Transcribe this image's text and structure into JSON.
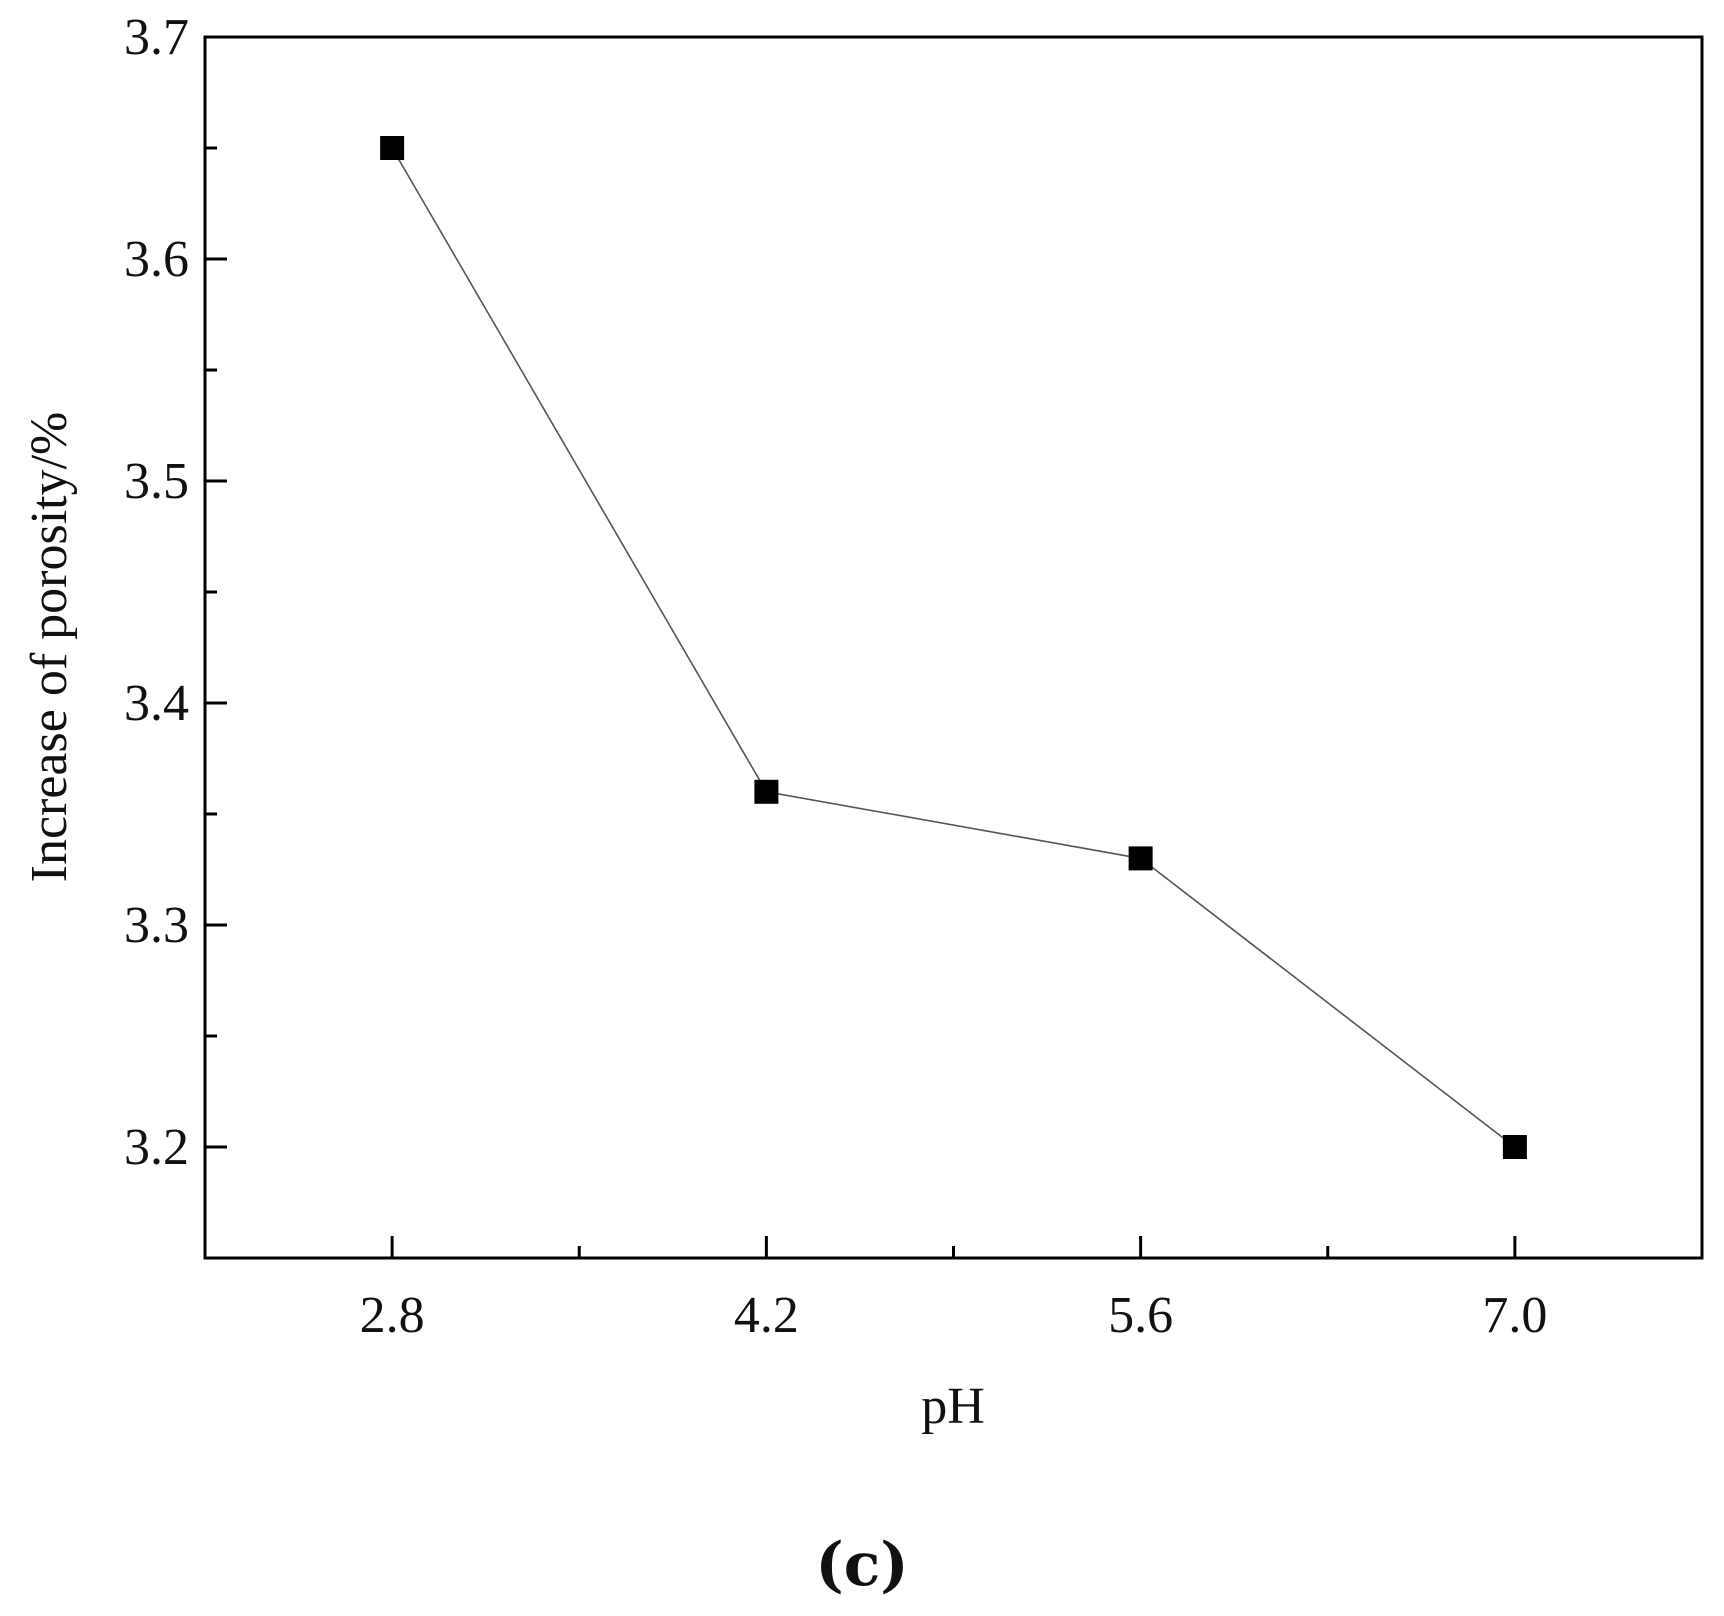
{
  "chart_data": {
    "type": "line",
    "x": [
      2.8,
      4.2,
      5.6,
      7.0
    ],
    "series": [
      {
        "values": [
          3.65,
          3.36,
          3.33,
          3.2
        ]
      }
    ],
    "xlabel": "pH",
    "ylabel": "Increase of porosity/%",
    "xlim": [
      2.1,
      7.7
    ],
    "ylim": [
      3.15,
      3.7
    ],
    "x_ticks": [
      "2.8",
      "4.2",
      "5.6",
      "7.0"
    ],
    "x_minor_ticks": [
      3.5,
      4.9,
      6.3
    ],
    "y_ticks": [
      "3.2",
      "3.3",
      "3.4",
      "3.5",
      "3.6",
      "3.7"
    ],
    "y_minor_ticks": [
      3.25,
      3.35,
      3.45,
      3.55,
      3.65
    ],
    "marker": "filled-square",
    "line_color": "#555555",
    "marker_color": "#000000",
    "grid": false,
    "legend": "none"
  },
  "panel_label": "(c)"
}
